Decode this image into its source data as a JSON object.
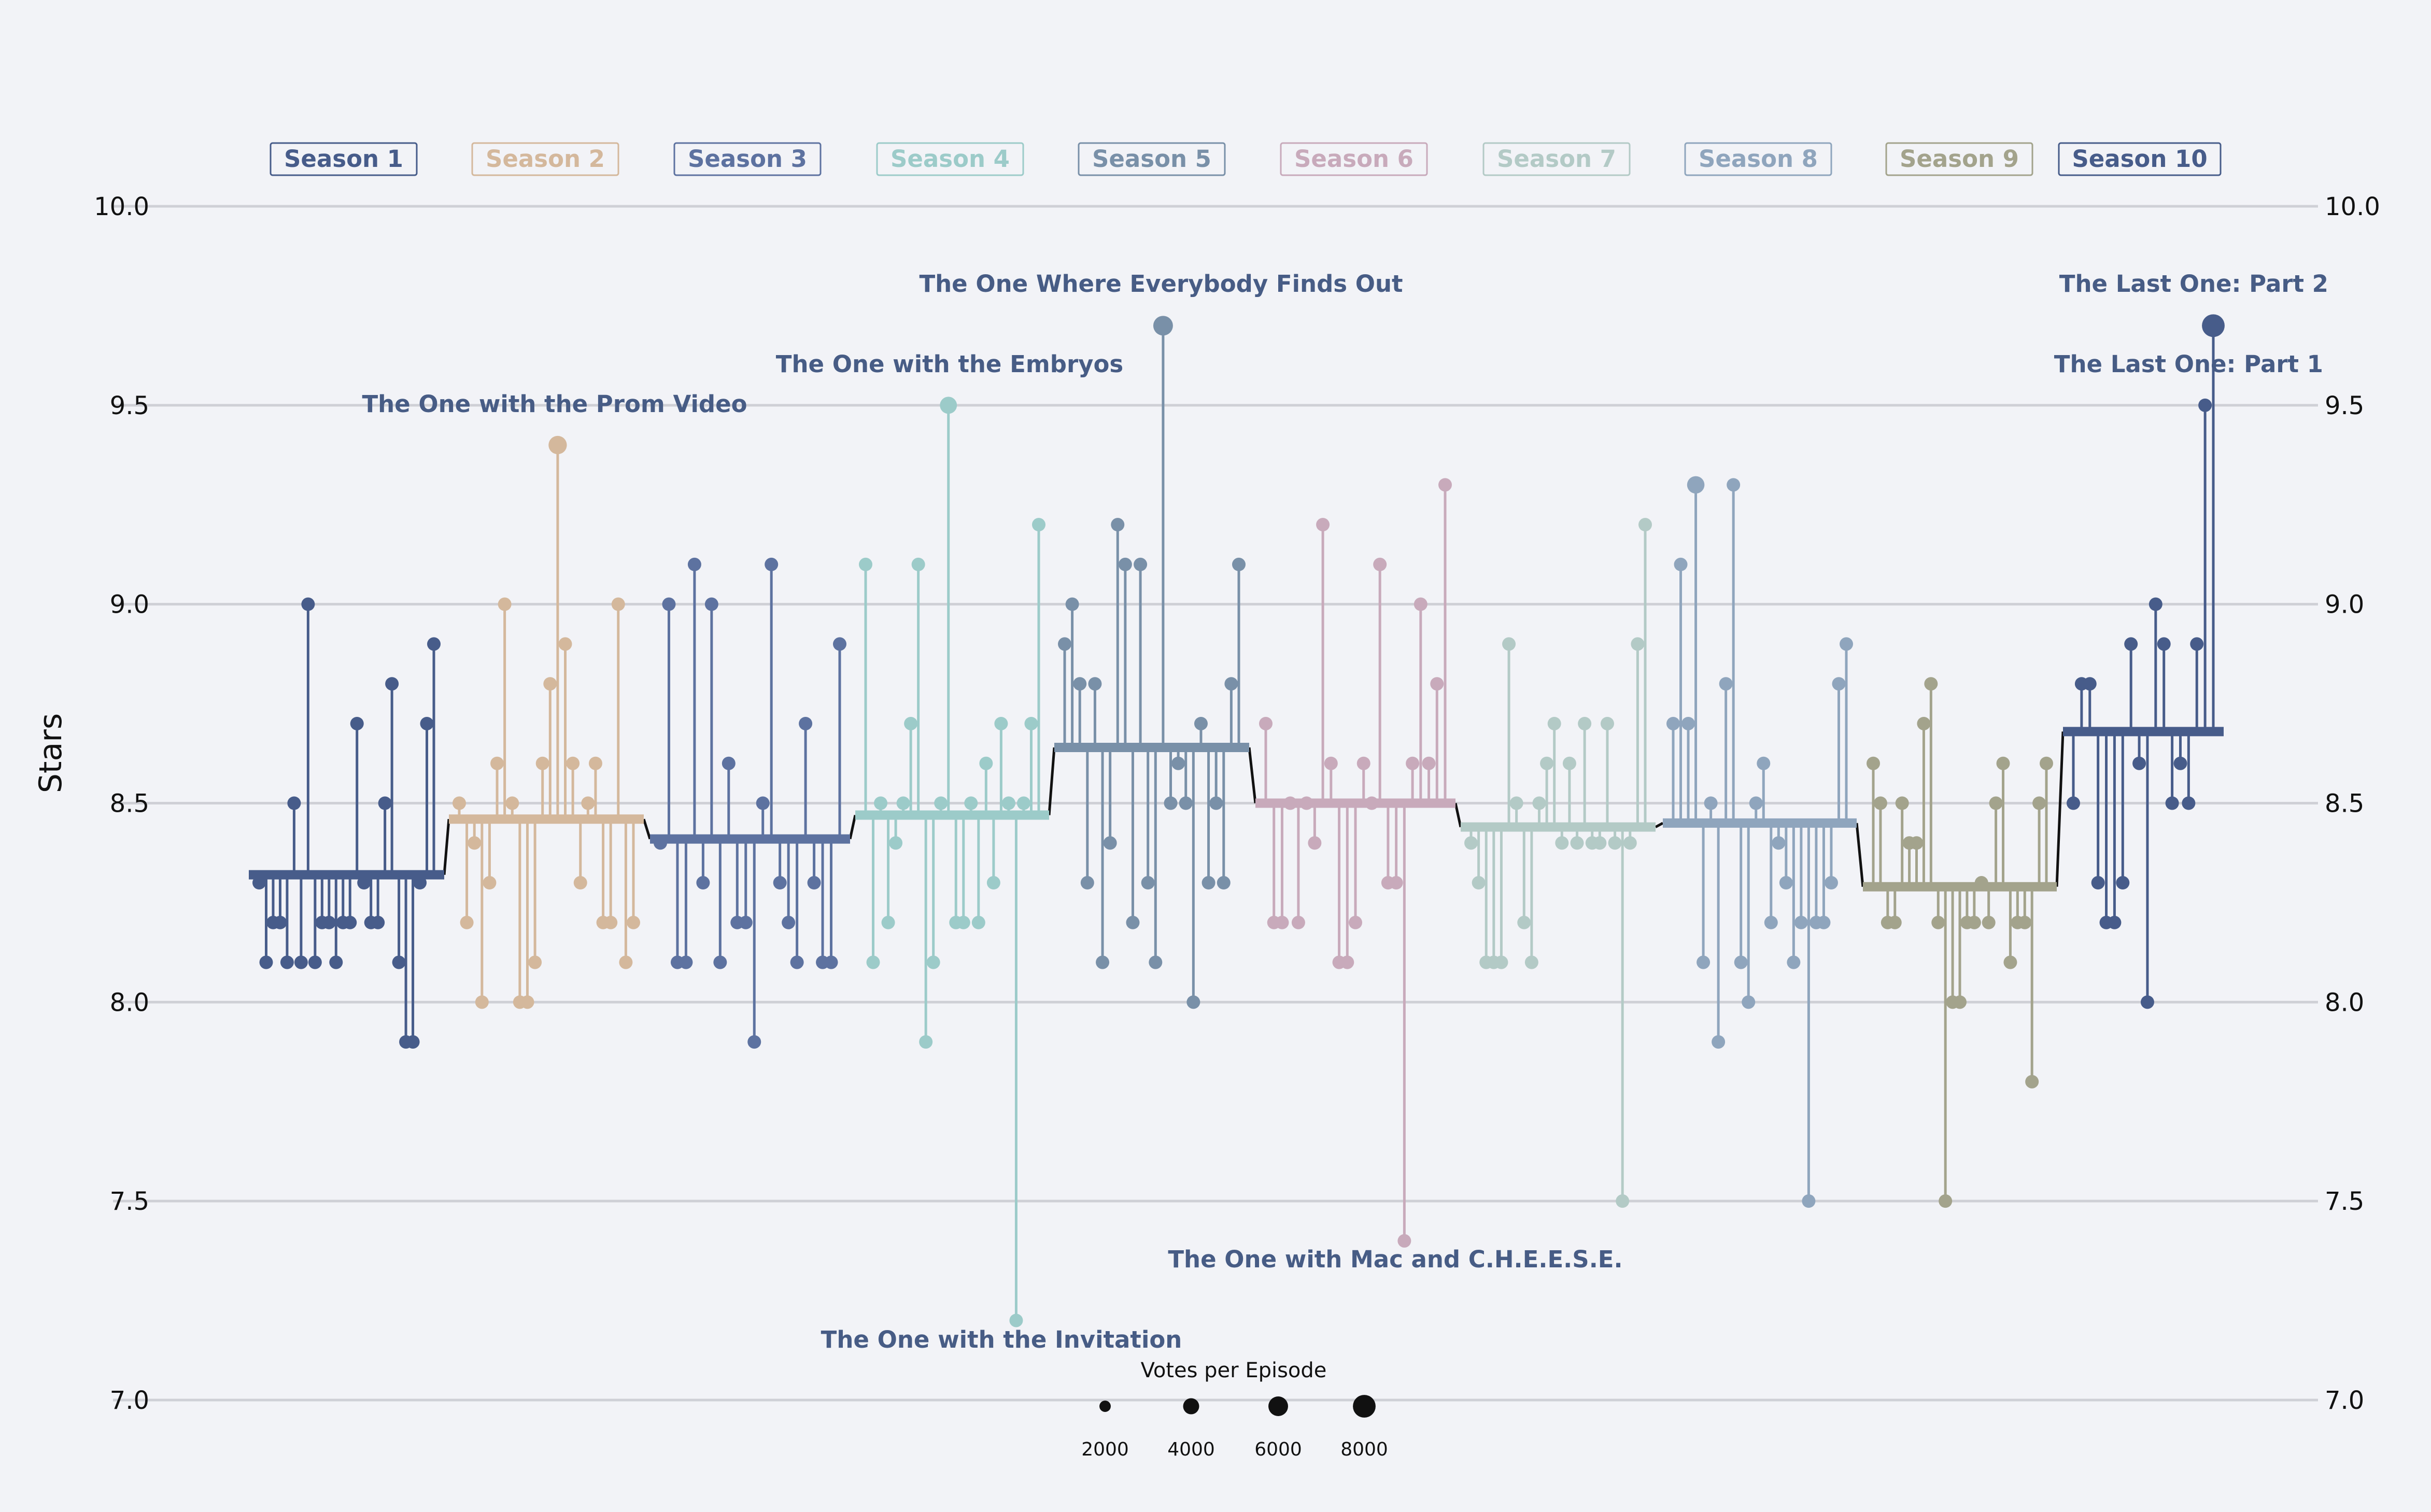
{
  "chart_data": {
    "type": "scatter",
    "ylabel": "Stars",
    "ylim": [
      7.0,
      10.0
    ],
    "yticks": [
      "7.0",
      "7.5",
      "8.0",
      "8.5",
      "9.0",
      "9.5",
      "10.0"
    ],
    "grid": true,
    "legend_position": "top",
    "seasons": [
      {
        "name": "Season 1",
        "color": "#475c8a",
        "mean": 8.32,
        "ratings": [
          8.3,
          8.1,
          8.2,
          8.2,
          8.1,
          8.5,
          8.1,
          9.0,
          8.1,
          8.2,
          8.2,
          8.1,
          8.2,
          8.2,
          8.7,
          8.3,
          8.2,
          8.2,
          8.5,
          8.8,
          8.1,
          7.9,
          7.9,
          8.3,
          8.7,
          8.9
        ]
      },
      {
        "name": "Season 2",
        "color": "#d4b89c",
        "mean": 8.46,
        "ratings": [
          8.5,
          8.2,
          8.4,
          8.0,
          8.3,
          8.6,
          9.0,
          8.5,
          8.0,
          8.0,
          8.1,
          8.6,
          8.8,
          9.4,
          8.9,
          8.6,
          8.3,
          8.5,
          8.6,
          8.2,
          8.2,
          9.0,
          8.1,
          8.2
        ]
      },
      {
        "name": "Season 3",
        "color": "#5d72a0",
        "mean": 8.41,
        "ratings": [
          8.4,
          9.0,
          8.1,
          8.1,
          9.1,
          8.3,
          9.0,
          8.1,
          8.6,
          8.2,
          8.2,
          7.9,
          8.5,
          9.1,
          8.3,
          8.2,
          8.1,
          8.7,
          8.3,
          8.1,
          8.1,
          8.9
        ]
      },
      {
        "name": "Season 4",
        "color": "#9ccbc9",
        "mean": 8.47,
        "ratings": [
          9.1,
          8.1,
          8.5,
          8.2,
          8.4,
          8.5,
          8.7,
          9.1,
          7.9,
          8.1,
          8.5,
          9.5,
          8.2,
          8.2,
          8.5,
          8.2,
          8.6,
          8.3,
          8.7,
          8.5,
          7.2,
          8.5,
          8.7,
          9.2
        ]
      },
      {
        "name": "Season 5",
        "color": "#7990a8",
        "mean": 8.64,
        "ratings": [
          8.9,
          9.0,
          8.8,
          8.3,
          8.8,
          8.1,
          8.4,
          9.2,
          9.1,
          8.2,
          9.1,
          8.3,
          8.1,
          9.7,
          8.5,
          8.6,
          8.5,
          8.0,
          8.7,
          8.3,
          8.5,
          8.3,
          8.8,
          9.1
        ]
      },
      {
        "name": "Season 6",
        "color": "#c8aabb",
        "mean": 8.5,
        "ratings": [
          8.7,
          8.2,
          8.2,
          8.5,
          8.2,
          8.5,
          8.4,
          9.2,
          8.6,
          8.1,
          8.1,
          8.2,
          8.6,
          8.5,
          9.1,
          8.3,
          8.3,
          7.4,
          8.6,
          9.0,
          8.6,
          8.8,
          9.3
        ]
      },
      {
        "name": "Season 7",
        "color": "#b3cac6",
        "mean": 8.44,
        "ratings": [
          8.4,
          8.3,
          8.1,
          8.1,
          8.1,
          8.9,
          8.5,
          8.2,
          8.1,
          8.5,
          8.6,
          8.7,
          8.4,
          8.6,
          8.4,
          8.7,
          8.4,
          8.4,
          8.7,
          8.4,
          7.5,
          8.4,
          8.9,
          9.2
        ]
      },
      {
        "name": "Season 8",
        "color": "#8fa5bd",
        "mean": 8.45,
        "ratings": [
          8.7,
          9.1,
          8.7,
          9.3,
          8.1,
          8.5,
          7.9,
          8.8,
          9.3,
          8.1,
          8.0,
          8.5,
          8.6,
          8.2,
          8.4,
          8.3,
          8.1,
          8.2,
          7.5,
          8.2,
          8.2,
          8.3,
          8.8,
          8.9
        ]
      },
      {
        "name": "Season 9",
        "color": "#a3a38c",
        "mean": 8.29,
        "ratings": [
          8.6,
          8.5,
          8.2,
          8.2,
          8.5,
          8.4,
          8.4,
          8.7,
          8.8,
          8.2,
          7.5,
          8.0,
          8.0,
          8.2,
          8.2,
          8.3,
          8.2,
          8.5,
          8.6,
          8.1,
          8.2,
          8.2,
          7.8,
          8.5,
          8.6
        ]
      },
      {
        "name": "Season 10",
        "color": "#475c8a",
        "mean": 8.68,
        "ratings": [
          8.5,
          8.8,
          8.8,
          8.3,
          8.2,
          8.2,
          8.3,
          8.9,
          8.6,
          8.0,
          9.0,
          8.9,
          8.5,
          8.6,
          8.5,
          8.9,
          9.5,
          9.7
        ]
      }
    ],
    "highlighted_points": [
      {
        "season": "Season 2",
        "rating": 9.4,
        "votes": 5200
      },
      {
        "season": "Season 4",
        "rating": 9.5,
        "votes": 4500
      },
      {
        "season": "Season 5",
        "rating": 9.7,
        "votes": 6000
      },
      {
        "season": "Season 8",
        "rating": 9.3,
        "votes": 4700
      },
      {
        "season": "Season 10",
        "rating": 9.7,
        "votes": 8000
      }
    ],
    "annotations": [
      {
        "text": "The One with the Prom Video",
        "season": 2,
        "episode": 14,
        "rating": 9.4
      },
      {
        "text": "The One with the Embryos",
        "season": 4,
        "episode": 12,
        "rating": 9.5
      },
      {
        "text": "The One Where Everybody Finds Out",
        "season": 5,
        "episode": 14,
        "rating": 9.7
      },
      {
        "text": "The Last One: Part 2",
        "season": 10,
        "episode": 18,
        "rating": 9.7
      },
      {
        "text": "The Last One: Part 1",
        "season": 10,
        "episode": 17,
        "rating": 9.5
      },
      {
        "text": "The One with the Invitation",
        "season": 4,
        "episode": 21,
        "rating": 7.2
      },
      {
        "text": "The One with Mac and C.H.E.E.S.E.",
        "season": 6,
        "episode": 18,
        "rating": 7.4
      }
    ],
    "size_legend": {
      "title": "Votes per Episode",
      "values": [
        2000,
        4000,
        6000,
        8000
      ],
      "labels": [
        "2000",
        "4000",
        "6000",
        "8000"
      ]
    }
  }
}
